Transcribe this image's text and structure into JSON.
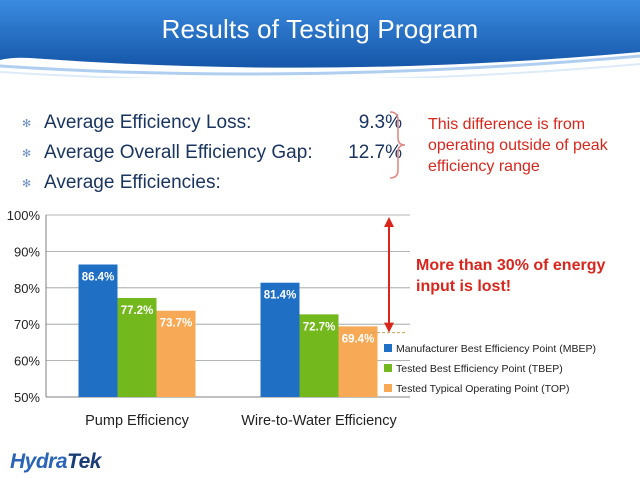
{
  "slide": {
    "title": "Results of Testing Program",
    "bullets": [
      {
        "label": "Average Efficiency Loss:",
        "value": "9.3%"
      },
      {
        "label": "Average Overall Efficiency Gap:",
        "value": "12.7%"
      },
      {
        "label": "Average Efficiencies:",
        "value": ""
      }
    ],
    "brace_note": "This difference is from operating outside of peak efficiency range",
    "callout": "More than 30% of energy input is lost!",
    "logo": {
      "part1": "Hydra",
      "part2": "Tek"
    },
    "colors": {
      "title_bar": "#1f6fc5",
      "note_red": "#d9261c",
      "arrow": "#d9261c"
    }
  },
  "chart_data": {
    "type": "bar",
    "categories": [
      "Pump Efficiency",
      "Wire-to-Water Efficiency"
    ],
    "series": [
      {
        "name": "Manufacturer Best Efficiency Point (MBEP)",
        "color": "#1f6fc5",
        "values": [
          86.4,
          81.4
        ],
        "labels": [
          "86.4%",
          "81.4%"
        ]
      },
      {
        "name": "Tested Best Efficiency Point (TBEP)",
        "color": "#73b81d",
        "values": [
          77.2,
          72.7
        ],
        "labels": [
          "77.2%",
          "72.7%"
        ]
      },
      {
        "name": "Tested Typical Operating Point (TOP)",
        "color": "#f7a955",
        "values": [
          73.7,
          69.4
        ],
        "labels": [
          "73.7%",
          "69.4%"
        ]
      }
    ],
    "ylim": [
      50,
      100
    ],
    "yticks": [
      50,
      60,
      70,
      80,
      90,
      100
    ],
    "ytick_labels": [
      "50%",
      "60%",
      "70%",
      "80%",
      "90%",
      "100%"
    ],
    "grid": true,
    "legend": "right",
    "arrow_range": [
      67.7,
      100
    ]
  }
}
